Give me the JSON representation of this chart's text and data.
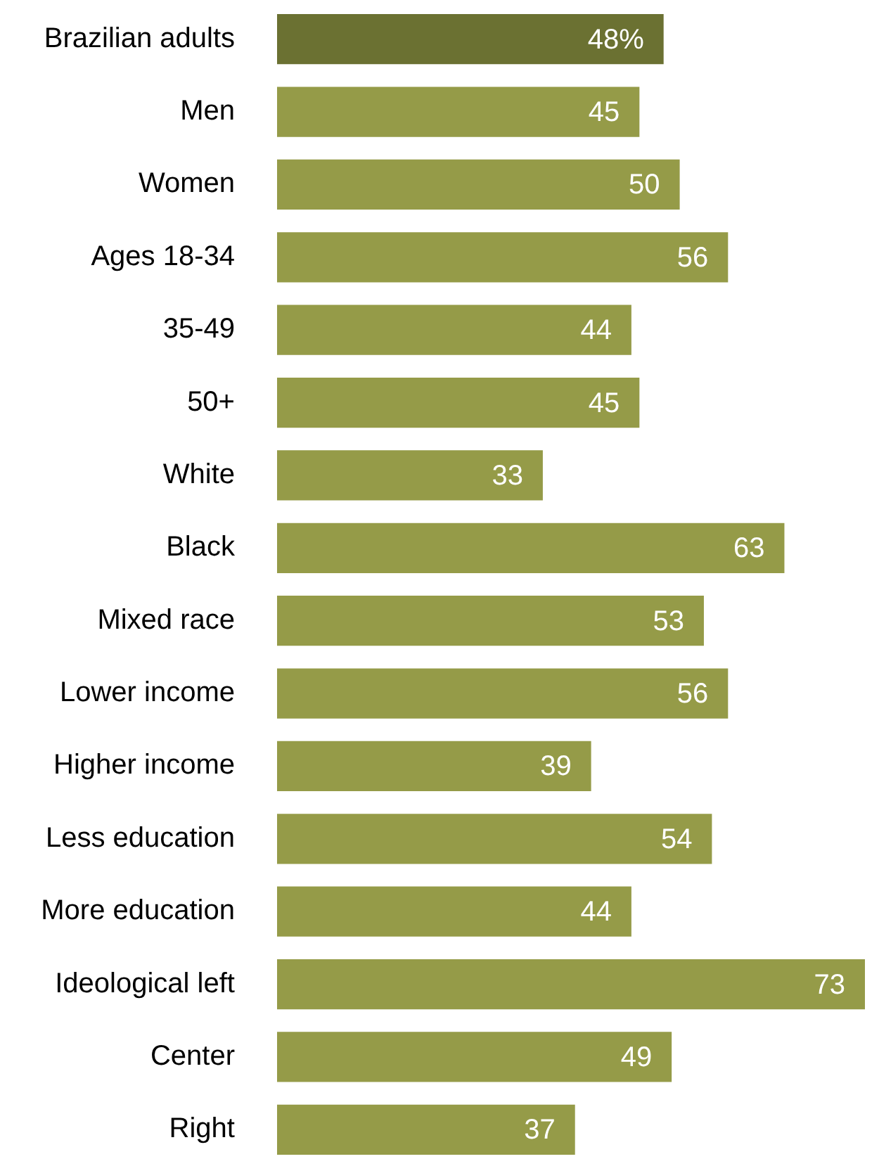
{
  "chart_data": {
    "type": "bar",
    "orientation": "horizontal",
    "categories": [
      "Brazilian adults",
      "Men",
      "Women",
      "Ages 18-34",
      "35-49",
      "50+",
      "White",
      "Black",
      "Mixed race",
      "Lower income",
      "Higher income",
      "Less education",
      "More education",
      "Ideological left",
      "Center",
      "Right"
    ],
    "values": [
      48,
      45,
      50,
      56,
      44,
      45,
      33,
      63,
      53,
      56,
      39,
      54,
      44,
      73,
      49,
      37
    ],
    "colors": [
      "#6b7132",
      "#959b48",
      "#959b48",
      "#959b48",
      "#959b48",
      "#959b48",
      "#959b48",
      "#959b48",
      "#959b48",
      "#959b48",
      "#959b48",
      "#959b48",
      "#959b48",
      "#959b48",
      "#959b48",
      "#959b48"
    ],
    "value_labels": [
      "48%",
      "45",
      "50",
      "56",
      "44",
      "45",
      "33",
      "63",
      "53",
      "56",
      "39",
      "54",
      "44",
      "73",
      "49",
      "37"
    ],
    "legend": false,
    "tick_labels": "y"
  }
}
